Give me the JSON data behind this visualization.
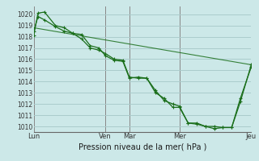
{
  "background_color": "#cce8e8",
  "grid_color": "#aacccc",
  "line_color": "#1a6e1a",
  "marker_color": "#1a6e1a",
  "xlabel": "Pression niveau de la mer( hPa )",
  "ylim": [
    1009.5,
    1020.7
  ],
  "yticks": [
    1010,
    1011,
    1012,
    1013,
    1014,
    1015,
    1016,
    1017,
    1018,
    1019,
    1020
  ],
  "xtick_labels": [
    "Lun",
    "Ven",
    "Mar",
    "Mer",
    "Jeu"
  ],
  "xtick_positions": [
    0,
    33,
    44,
    67,
    100
  ],
  "series1_x": [
    0,
    2,
    5,
    10,
    14,
    18,
    22,
    26,
    30,
    33,
    37,
    41,
    44,
    48,
    52,
    56,
    60,
    64,
    67,
    71,
    75,
    79,
    83,
    87,
    91,
    95,
    100
  ],
  "series1_y": [
    1018.1,
    1020.1,
    1020.2,
    1019.0,
    1018.8,
    1018.3,
    1018.2,
    1017.2,
    1017.0,
    1016.3,
    1015.9,
    1015.8,
    1014.3,
    1014.4,
    1014.3,
    1013.0,
    1012.5,
    1011.7,
    1011.7,
    1010.3,
    1010.3,
    1010.0,
    1010.0,
    1009.9,
    1009.9,
    1012.2,
    1015.5
  ],
  "series2_x": [
    0,
    2,
    5,
    10,
    14,
    18,
    22,
    26,
    30,
    33,
    37,
    41,
    44,
    48,
    52,
    56,
    60,
    64,
    67,
    71,
    75,
    79,
    83,
    87,
    91,
    95,
    100
  ],
  "series2_y": [
    1018.5,
    1019.8,
    1019.5,
    1018.9,
    1018.5,
    1018.3,
    1017.8,
    1017.0,
    1016.8,
    1016.5,
    1016.0,
    1015.9,
    1014.4,
    1014.3,
    1014.3,
    1013.2,
    1012.3,
    1012.0,
    1011.8,
    1010.3,
    1010.2,
    1010.0,
    1009.8,
    1009.9,
    1009.9,
    1012.5,
    1015.3
  ],
  "series3_x": [
    0,
    100
  ],
  "series3_y": [
    1018.8,
    1015.5
  ]
}
